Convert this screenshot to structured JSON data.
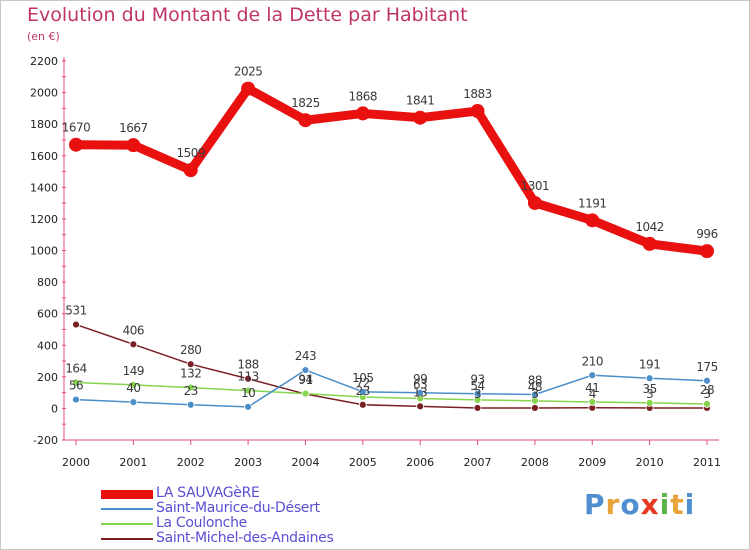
{
  "title": "Evolution du Montant de la Dette par Habitant",
  "unit": "(en €)",
  "brand": {
    "text": "Proxiti",
    "letter_colors": [
      "#4f8fd0",
      "#e8a33a",
      "#4f8fd0",
      "#e53a1f",
      "#5bb34a",
      "#e8a33a",
      "#4f8fd0"
    ]
  },
  "chart_data": {
    "type": "line",
    "categories": [
      "2000",
      "2001",
      "2002",
      "2003",
      "2004",
      "2005",
      "2006",
      "2007",
      "2008",
      "2009",
      "2010",
      "2011"
    ],
    "ylim": [
      -200,
      2200
    ],
    "yticks": [
      "-200",
      "0",
      "200",
      "400",
      "600",
      "800",
      "1000",
      "1200",
      "1400",
      "1600",
      "1800",
      "2000",
      "2200"
    ],
    "grid": false,
    "legend_position": "bottom-left",
    "series": [
      {
        "name": "LA SAUVAGèRE",
        "color": "#e8110f",
        "values": [
          1670,
          1667,
          1509,
          2025,
          1825,
          1868,
          1841,
          1883,
          1301,
          1191,
          1042,
          996
        ],
        "labels": [
          "1670",
          "1667",
          "1509",
          "2025",
          "1825",
          "1868",
          "1841",
          "1883",
          "1301",
          "1191",
          "1042",
          "996"
        ]
      },
      {
        "name": "Saint-Maurice-du-Désert",
        "color": "#4b8ec8",
        "values": [
          56,
          40,
          23,
          10,
          243,
          105,
          99,
          93,
          88,
          210,
          191,
          175
        ],
        "labels": [
          "56",
          "40",
          "23",
          "10",
          "243",
          "105",
          "99",
          "93",
          "88",
          "210",
          "191",
          "175"
        ]
      },
      {
        "name": "La Coulonche",
        "color": "#86d44e",
        "values": [
          164,
          149,
          132,
          113,
          94,
          72,
          63,
          54,
          48,
          41,
          35,
          28
        ],
        "labels": [
          "164",
          "149",
          "132",
          "113",
          "94",
          "72",
          "63",
          "54",
          "48",
          "41",
          "35",
          "28"
        ]
      },
      {
        "name": "Saint-Michel-des-Andaines",
        "color": "#7a1f24",
        "values": [
          531,
          406,
          280,
          188,
          91,
          23,
          13,
          3,
          3,
          4,
          3,
          3
        ],
        "labels": [
          "531",
          "406",
          "280",
          "188",
          "91",
          "23",
          "13",
          "3",
          "3",
          "4",
          "3",
          "3"
        ]
      }
    ]
  }
}
